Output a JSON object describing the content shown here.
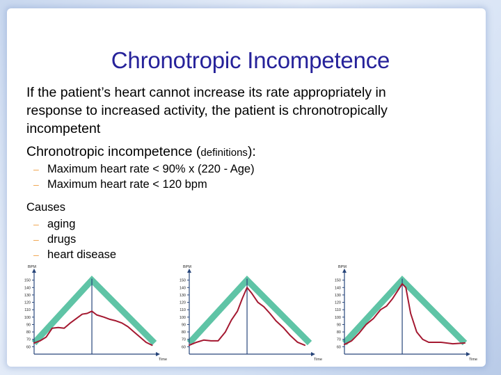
{
  "slide": {
    "title": "Chronotropic Incompetence",
    "intro": "If the patient’s heart cannot increase its rate appropriately in response to increased activity, the patient is chronotropically incompetent",
    "definitions_heading_main": "Chronotropic incompetence (",
    "definitions_heading_small": "definitions",
    "definitions_heading_end": "):",
    "definitions": [
      "Maximum heart rate < 90% x (220 - Age)",
      "Maximum heart rate < 120 bpm"
    ],
    "causes_heading": "Causes",
    "causes": [
      "aging",
      "drugs",
      "heart disease"
    ],
    "bullet_glyph": "–"
  },
  "colors": {
    "title": "#26229a",
    "expected_band": "#5fc4a6",
    "patient_line": "#a41830",
    "axis": "#27457a",
    "bullet": "#f0a24a"
  },
  "chart_data": [
    {
      "type": "line",
      "ylabel": "BPM",
      "xlabel": "Time",
      "yticks": [
        60,
        70,
        80,
        90,
        100,
        110,
        120,
        130,
        140,
        150
      ],
      "ylim": [
        50,
        160
      ],
      "xlim": [
        0,
        100
      ],
      "peak_time": 48,
      "series": [
        {
          "role": "expected_band",
          "x": [
            0,
            48,
            100
          ],
          "y": [
            65,
            150,
            65
          ]
        },
        {
          "role": "patient",
          "x": [
            0,
            5,
            10,
            15,
            20,
            25,
            30,
            35,
            40,
            44,
            48,
            52,
            58,
            63,
            68,
            73,
            78,
            83,
            88,
            93,
            98
          ],
          "y": [
            65,
            68,
            73,
            85,
            86,
            85,
            92,
            98,
            104,
            105,
            108,
            103,
            100,
            97,
            95,
            92,
            87,
            80,
            73,
            66,
            62
          ]
        }
      ]
    },
    {
      "type": "line",
      "ylabel": "BPM",
      "xlabel": "Time",
      "yticks": [
        60,
        70,
        80,
        90,
        100,
        110,
        120,
        130,
        140,
        150
      ],
      "ylim": [
        50,
        160
      ],
      "xlim": [
        0,
        100
      ],
      "peak_time": 48,
      "series": [
        {
          "role": "expected_band",
          "x": [
            0,
            48,
            100
          ],
          "y": [
            65,
            150,
            65
          ]
        },
        {
          "role": "patient",
          "x": [
            0,
            6,
            12,
            18,
            24,
            30,
            35,
            40,
            44,
            48,
            52,
            57,
            62,
            67,
            72,
            78,
            84,
            90,
            96
          ],
          "y": [
            62,
            66,
            69,
            68,
            68,
            80,
            96,
            108,
            125,
            140,
            132,
            120,
            114,
            105,
            95,
            86,
            75,
            66,
            62
          ]
        }
      ]
    },
    {
      "type": "line",
      "ylabel": "BPM",
      "xlabel": "Time",
      "yticks": [
        60,
        70,
        80,
        90,
        100,
        110,
        120,
        130,
        140,
        150
      ],
      "ylim": [
        50,
        160
      ],
      "xlim": [
        0,
        100
      ],
      "peak_time": 48,
      "series": [
        {
          "role": "expected_band",
          "x": [
            0,
            48,
            100
          ],
          "y": [
            65,
            150,
            65
          ]
        },
        {
          "role": "patient",
          "x": [
            0,
            6,
            12,
            18,
            24,
            30,
            35,
            40,
            44,
            48,
            51,
            55,
            60,
            65,
            70,
            80,
            90,
            100
          ],
          "y": [
            63,
            68,
            78,
            90,
            98,
            110,
            115,
            125,
            135,
            145,
            140,
            105,
            80,
            70,
            66,
            66,
            64,
            65
          ]
        }
      ]
    }
  ]
}
